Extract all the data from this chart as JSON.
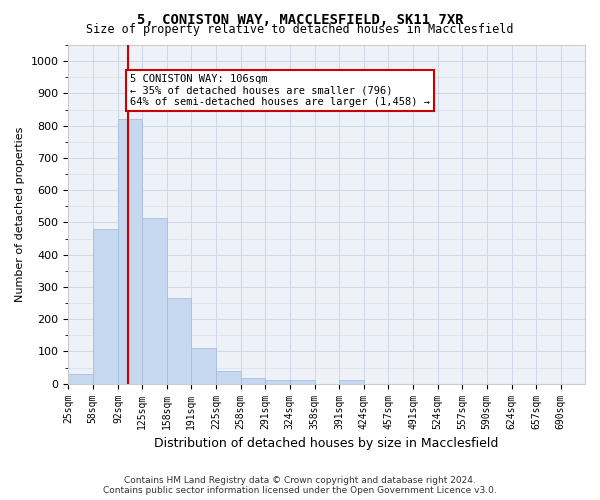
{
  "title1": "5, CONISTON WAY, MACCLESFIELD, SK11 7XR",
  "title2": "Size of property relative to detached houses in Macclesfield",
  "xlabel": "Distribution of detached houses by size in Macclesfield",
  "ylabel": "Number of detached properties",
  "footer1": "Contains HM Land Registry data © Crown copyright and database right 2024.",
  "footer2": "Contains public sector information licensed under the Open Government Licence v3.0.",
  "bin_labels": [
    "25sqm",
    "58sqm",
    "92sqm",
    "125sqm",
    "158sqm",
    "191sqm",
    "225sqm",
    "258sqm",
    "291sqm",
    "324sqm",
    "358sqm",
    "391sqm",
    "424sqm",
    "457sqm",
    "491sqm",
    "524sqm",
    "557sqm",
    "590sqm",
    "624sqm",
    "657sqm",
    "690sqm"
  ],
  "bar_values": [
    30,
    480,
    820,
    515,
    265,
    110,
    38,
    18,
    12,
    12,
    0,
    12,
    0,
    0,
    0,
    0,
    0,
    0,
    0,
    0,
    0
  ],
  "bar_color": "#c5d8f0",
  "bar_edgecolor": "#a0b8d8",
  "bar_linewidth": 0.5,
  "grid_color": "#d0d8e8",
  "background_color": "#eef2f8",
  "property_line_x": 106,
  "property_line_color": "#cc0000",
  "annotation_text": "5 CONISTON WAY: 106sqm\n← 35% of detached houses are smaller (796)\n64% of semi-detached houses are larger (1,458) →",
  "annotation_box_color": "#cc0000",
  "ylim": [
    0,
    1050
  ],
  "yticks": [
    0,
    100,
    200,
    300,
    400,
    500,
    600,
    700,
    800,
    900,
    1000
  ],
  "bin_edges": [
    25,
    58,
    92,
    125,
    158,
    191,
    225,
    258,
    291,
    324,
    358,
    391,
    424,
    457,
    491,
    524,
    557,
    590,
    624,
    657,
    690,
    723
  ]
}
